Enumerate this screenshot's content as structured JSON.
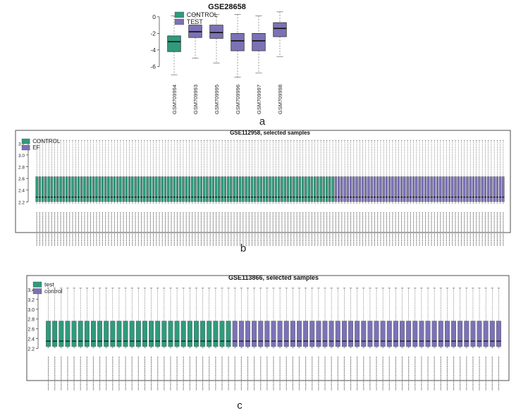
{
  "colors": {
    "control": "#2f9a7c",
    "test": "#7b72b6",
    "axis": "#333333",
    "frame": "#222222"
  },
  "panels": [
    {
      "label": "a"
    },
    {
      "label": "b"
    },
    {
      "label": "c"
    }
  ],
  "chart_data": [
    {
      "type": "box",
      "title": "GSE28658",
      "legend": {
        "position": "top-left",
        "entries": [
          {
            "name": "CONTROL",
            "color": "#2f9a7c"
          },
          {
            "name": "TEST",
            "color": "#7b72b6"
          }
        ]
      },
      "ylim": [
        -7.5,
        0.5
      ],
      "yticks": [
        0,
        -2,
        -4,
        -6
      ],
      "grid": false,
      "categories": [
        "GSM709994",
        "GSM709993",
        "GSM709995",
        "GSM709996",
        "GSM709997",
        "GSM709998"
      ],
      "groups": [
        "CONTROL",
        "TEST",
        "TEST",
        "TEST",
        "TEST",
        "TEST"
      ],
      "boxes": [
        {
          "whisker_low": -7.0,
          "q1": -4.2,
          "median": -3.0,
          "q3": -2.3,
          "whisker_high": 0.1
        },
        {
          "whisker_low": -5.0,
          "q1": -2.5,
          "median": -1.8,
          "q3": -1.0,
          "whisker_high": 0.3
        },
        {
          "whisker_low": -5.6,
          "q1": -2.6,
          "median": -1.9,
          "q3": -1.0,
          "whisker_high": 0.3
        },
        {
          "whisker_low": -7.3,
          "q1": -4.1,
          "median": -2.9,
          "q3": -2.0,
          "whisker_high": 0.3
        },
        {
          "whisker_low": -6.8,
          "q1": -4.1,
          "median": -2.9,
          "q3": -2.0,
          "whisker_high": 0.1
        },
        {
          "whisker_low": -4.8,
          "q1": -2.4,
          "median": -1.4,
          "q3": -0.7,
          "whisker_high": 0.6
        }
      ]
    },
    {
      "type": "box",
      "title": "GSE112958, selected samples",
      "legend": {
        "position": "top-left",
        "entries": [
          {
            "name": "CONTROL",
            "color": "#2f9a7c"
          },
          {
            "name": "EF",
            "color": "#7b72b6"
          }
        ]
      },
      "ylim": [
        2.12,
        3.3
      ],
      "yticks": [
        2.2,
        2.4,
        2.6,
        2.8,
        3.0,
        3.2
      ],
      "grid": false,
      "group_counts": {
        "CONTROL": 100,
        "EF": 57
      },
      "box_stats_all": {
        "whisker_low": 2.17,
        "q1": 2.2,
        "median": 2.28,
        "q3": 2.63,
        "whisker_high": 3.25
      }
    },
    {
      "type": "box",
      "title": "GSE113866, selected samples",
      "legend": {
        "position": "top-left",
        "entries": [
          {
            "name": "test",
            "color": "#2f9a7c"
          },
          {
            "name": "control",
            "color": "#7b72b6"
          }
        ]
      },
      "ylim": [
        2.15,
        3.5
      ],
      "yticks": [
        2.2,
        2.4,
        2.6,
        2.8,
        3.0,
        3.2,
        3.4
      ],
      "grid": false,
      "group_counts": {
        "test": 29,
        "control": 42
      },
      "box_stats_all": {
        "whisker_low": 2.22,
        "q1": 2.24,
        "median": 2.35,
        "q3": 2.76,
        "whisker_high": 3.43
      }
    }
  ]
}
